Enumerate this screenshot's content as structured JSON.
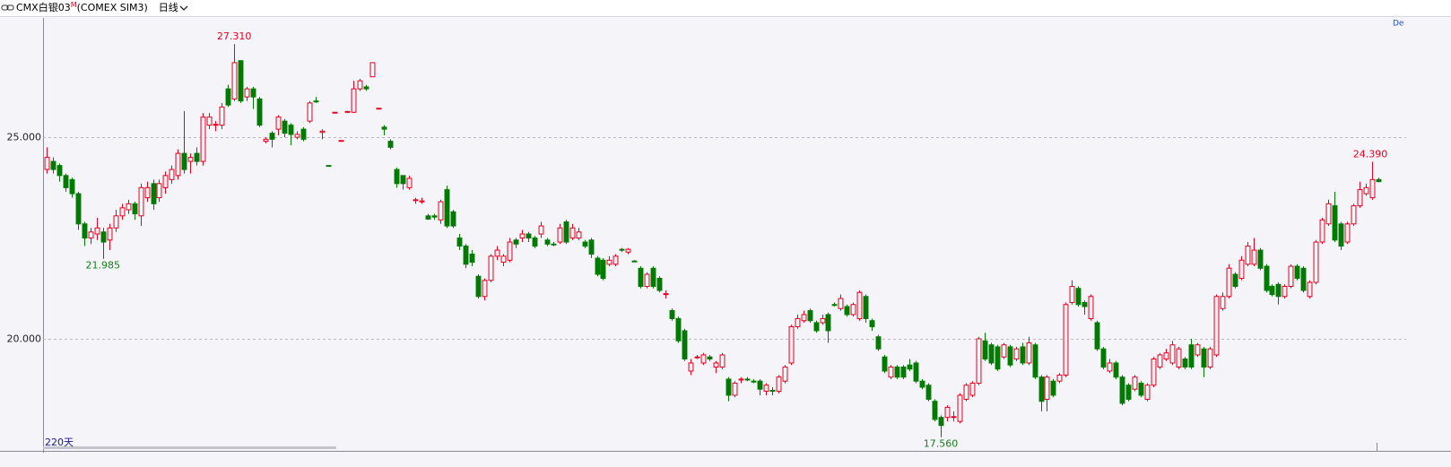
{
  "header": {
    "symbol": "CMX白银03",
    "flag": "M",
    "exchange": "(COMEX SIM3)",
    "period": "日线"
  },
  "chart_data": {
    "type": "candlestick",
    "ylim": [
      17.22,
      27.96
    ],
    "yticks": [
      {
        "value": 20,
        "label": "20.000"
      },
      {
        "value": 25,
        "label": "25.000"
      }
    ],
    "grid": true,
    "up_color": "#e8001c",
    "down_color": "#007a00",
    "range_label": "220天",
    "corner_label": "De",
    "annotations": [
      {
        "value": 27.31,
        "label": "27.310",
        "color": "#e8001c",
        "side": "high"
      },
      {
        "value": 21.985,
        "label": "21.985",
        "color": "#1a7f1a",
        "side": "low"
      },
      {
        "value": 17.56,
        "label": "17.560",
        "color": "#1a7f1a",
        "side": "low"
      },
      {
        "value": 24.39,
        "label": "24.390",
        "color": "#e8001c",
        "side": "high"
      }
    ],
    "open": [
      24.2,
      24.4,
      24.3,
      24.05,
      23.95,
      23.6,
      22.85,
      22.5,
      22.6,
      22.65,
      22.45,
      22.75,
      23.05,
      23.2,
      23.35,
      23.05,
      23.5,
      23.85,
      23.5,
      23.75,
      23.95,
      24.05,
      24.6,
      24.4,
      24.6,
      24.4,
      25.3,
      25.3,
      25.3,
      26.2,
      25.95,
      26.9,
      26.0,
      26.2,
      25.95,
      24.9,
      25.1,
      25.2,
      25.4,
      25.3,
      25.0,
      25.2,
      25.4,
      25.9,
      25.12,
      24.3,
      25.6,
      24.9,
      25.62,
      25.62,
      26.2,
      26.25,
      26.5,
      25.7,
      25.25,
      24.9,
      24.2,
      24.05,
      23.75,
      23.45,
      23.4,
      23.05,
      23.05,
      22.95,
      23.7,
      23.15,
      22.5,
      22.3,
      22.1,
      21.55,
      21.05,
      21.45,
      22.05,
      21.9,
      21.95,
      22.45,
      22.5,
      22.6,
      22.5,
      22.6,
      22.45,
      22.35,
      22.4,
      22.9,
      22.5,
      22.5,
      22.4,
      22.45,
      22.0,
      21.95,
      21.85,
      21.85,
      22.22,
      22.15,
      21.93,
      21.75,
      21.3,
      21.75,
      21.5,
      21.1,
      20.7,
      20.5,
      20.2,
      19.2,
      19.55,
      19.4,
      19.55,
      19.3,
      19.3,
      19.0,
      18.6,
      18.98,
      19.0,
      18.95,
      18.95,
      18.7,
      18.72,
      18.7,
      18.95,
      19.4,
      20.3,
      20.45,
      20.7,
      20.4,
      20.4,
      20.6,
      20.85,
      20.75,
      20.8,
      20.6,
      20.5,
      21.05,
      20.45,
      20.05,
      19.55,
      19.05,
      19.3,
      19.3,
      19.35,
      19.4,
      18.95,
      18.85,
      18.45,
      18.05,
      18.05,
      18.05,
      17.95,
      18.5,
      18.6,
      18.9,
      19.95,
      19.85,
      19.8,
      19.55,
      19.8,
      19.5,
      19.8,
      19.4,
      19.85,
      19.05,
      18.5,
      18.95,
      18.95,
      19.1,
      20.9,
      21.25,
      20.9,
      20.5,
      20.4,
      19.75,
      19.2,
      19.4,
      19.05,
      18.85,
      18.75,
      18.9,
      18.5,
      18.85,
      19.3,
      19.5,
      19.4,
      19.3,
      19.5,
      19.85,
      19.6,
      19.75,
      19.3,
      19.6,
      20.75,
      21.05,
      21.6,
      21.5,
      21.85,
      21.85,
      22.2,
      21.8,
      21.3,
      21.35,
      21.05,
      21.3,
      21.8,
      21.75,
      21.05,
      21.4,
      22.4,
      22.85,
      23.3,
      22.85,
      22.4,
      22.85,
      23.3,
      23.6,
      23.5,
      23.95
    ],
    "high": [
      24.75,
      24.5,
      24.35,
      24.1,
      24.0,
      23.65,
      22.9,
      22.75,
      23.0,
      22.75,
      22.85,
      23.2,
      23.35,
      23.45,
      23.4,
      23.85,
      23.9,
      23.95,
      23.95,
      24.15,
      24.3,
      24.7,
      25.65,
      24.6,
      24.75,
      25.6,
      25.6,
      25.4,
      25.85,
      26.3,
      27.31,
      26.9,
      26.25,
      26.25,
      26.0,
      25.0,
      25.15,
      25.55,
      25.45,
      25.35,
      25.15,
      25.25,
      25.9,
      26.0,
      25.2,
      24.3,
      25.62,
      24.92,
      25.65,
      26.4,
      26.45,
      26.3,
      26.85,
      25.72,
      25.3,
      24.95,
      24.25,
      24.05,
      24.05,
      23.5,
      23.5,
      23.1,
      23.1,
      23.45,
      23.8,
      23.2,
      22.6,
      22.35,
      22.2,
      21.6,
      21.5,
      22.1,
      22.3,
      22.1,
      22.5,
      22.5,
      22.7,
      22.65,
      22.55,
      22.9,
      22.5,
      22.4,
      22.85,
      22.95,
      22.85,
      22.75,
      22.45,
      22.5,
      22.05,
      22.0,
      22.05,
      22.1,
      22.25,
      22.25,
      21.95,
      21.8,
      21.65,
      21.8,
      21.55,
      21.2,
      20.75,
      20.55,
      20.25,
      19.5,
      19.6,
      19.65,
      19.6,
      19.45,
      19.65,
      19.05,
      18.95,
      19.05,
      19.05,
      19.0,
      19.0,
      18.9,
      18.8,
      19.1,
      19.35,
      20.35,
      20.6,
      20.7,
      20.75,
      20.45,
      20.6,
      20.65,
      20.9,
      21.1,
      20.85,
      20.9,
      21.2,
      21.1,
      20.5,
      20.1,
      19.6,
      19.35,
      19.35,
      19.35,
      19.5,
      19.45,
      19.0,
      18.9,
      18.5,
      18.1,
      18.35,
      18.2,
      18.65,
      18.9,
      18.95,
      20.05,
      20.15,
      19.9,
      19.85,
      19.9,
      19.85,
      19.8,
      19.9,
      20.05,
      19.9,
      19.1,
      19.1,
      19.0,
      19.15,
      20.9,
      21.45,
      21.3,
      20.95,
      21.1,
      20.45,
      19.8,
      19.5,
      19.45,
      19.1,
      18.9,
      19.1,
      18.95,
      18.9,
      19.55,
      19.65,
      19.75,
      19.95,
      19.8,
      19.55,
      20.0,
      19.9,
      19.8,
      19.8,
      21.1,
      21.15,
      21.85,
      21.65,
      22.05,
      22.4,
      22.5,
      22.25,
      21.85,
      21.35,
      21.4,
      21.35,
      21.85,
      21.85,
      21.8,
      21.45,
      22.45,
      23.0,
      23.45,
      23.65,
      22.9,
      22.9,
      23.35,
      23.9,
      23.85,
      24.39,
      24.0
    ],
    "low": [
      24.1,
      24.1,
      23.9,
      23.65,
      23.5,
      22.7,
      22.3,
      22.35,
      22.45,
      21.985,
      22.2,
      22.65,
      22.95,
      23.1,
      22.95,
      22.8,
      23.4,
      23.2,
      23.4,
      23.6,
      23.85,
      23.95,
      24.1,
      24.1,
      24.3,
      24.3,
      25.2,
      25.15,
      25.2,
      25.75,
      25.9,
      25.85,
      25.9,
      25.7,
      25.25,
      24.85,
      24.75,
      25.05,
      25.0,
      24.8,
      24.95,
      24.9,
      25.35,
      25.85,
      24.95,
      24.28,
      25.6,
      24.9,
      25.6,
      25.6,
      26.15,
      26.15,
      26.5,
      25.7,
      25.05,
      24.7,
      23.75,
      23.7,
      23.7,
      23.35,
      23.35,
      22.95,
      22.95,
      22.85,
      22.75,
      22.75,
      22.2,
      21.75,
      21.8,
      21.0,
      20.95,
      21.4,
      21.95,
      21.8,
      21.9,
      22.25,
      22.4,
      22.4,
      22.25,
      22.5,
      22.3,
      22.3,
      22.35,
      22.35,
      22.45,
      22.45,
      22.25,
      22.0,
      21.55,
      21.45,
      21.8,
      21.8,
      22.15,
      22.1,
      21.9,
      21.25,
      21.25,
      21.25,
      21.15,
      21.0,
      20.45,
      19.9,
      19.45,
      19.1,
      19.5,
      19.35,
      19.45,
      19.15,
      19.25,
      18.45,
      18.55,
      18.9,
      18.95,
      18.9,
      18.6,
      18.6,
      18.6,
      18.65,
      18.9,
      19.35,
      20.25,
      20.4,
      20.4,
      20.15,
      20.35,
      19.9,
      20.8,
      20.7,
      20.55,
      20.55,
      20.45,
      20.4,
      20.2,
      19.7,
      19.15,
      19.0,
      19.0,
      19.0,
      19.2,
      18.9,
      18.75,
      18.45,
      17.95,
      17.56,
      17.95,
      17.95,
      17.9,
      18.45,
      18.55,
      18.85,
      19.45,
      19.35,
      19.2,
      19.5,
      19.3,
      19.45,
      19.35,
      19.35,
      19.0,
      18.2,
      18.2,
      18.55,
      18.9,
      19.05,
      20.85,
      20.8,
      20.6,
      20.45,
      19.7,
      19.25,
      19.15,
      19.0,
      18.35,
      18.45,
      18.7,
      18.55,
      18.45,
      18.8,
      19.25,
      19.45,
      19.35,
      19.25,
      19.25,
      19.25,
      19.55,
      19.05,
      19.25,
      19.55,
      20.7,
      21.0,
      21.25,
      21.45,
      21.8,
      21.8,
      21.7,
      21.15,
      21.05,
      20.85,
      21.0,
      21.25,
      21.45,
      21.15,
      21.0,
      21.35,
      22.35,
      22.8,
      22.4,
      22.2,
      22.35,
      22.8,
      23.25,
      23.55,
      23.45,
      23.88
    ],
    "close": [
      24.5,
      24.2,
      24.05,
      23.75,
      23.6,
      22.85,
      22.5,
      22.65,
      22.75,
      22.4,
      22.75,
      23.05,
      23.25,
      23.35,
      23.1,
      23.75,
      23.75,
      23.35,
      23.85,
      24.05,
      24.2,
      24.6,
      24.2,
      24.5,
      24.4,
      25.5,
      25.5,
      25.32,
      25.75,
      25.8,
      26.85,
      25.9,
      26.2,
      26.0,
      25.3,
      24.95,
      24.95,
      25.5,
      25.1,
      25.07,
      25.07,
      24.95,
      25.85,
      25.88,
      25.15,
      24.28,
      25.62,
      24.92,
      25.64,
      26.2,
      26.4,
      26.2,
      26.85,
      25.72,
      25.2,
      24.75,
      23.85,
      23.85,
      23.98,
      23.45,
      23.42,
      22.97,
      23.02,
      23.4,
      22.8,
      22.8,
      22.3,
      21.85,
      21.9,
      21.05,
      21.45,
      22.05,
      22.2,
      22.05,
      22.4,
      22.35,
      22.6,
      22.5,
      22.3,
      22.8,
      22.35,
      22.33,
      22.75,
      22.4,
      22.75,
      22.65,
      22.3,
      22.1,
      21.6,
      21.5,
      21.95,
      22.05,
      22.2,
      22.22,
      21.92,
      21.3,
      21.6,
      21.3,
      21.2,
      21.12,
      20.5,
      19.95,
      19.5,
      19.4,
      19.55,
      19.6,
      19.5,
      19.4,
      19.6,
      18.6,
      18.9,
      19.0,
      18.98,
      18.94,
      18.75,
      18.85,
      18.7,
      19.05,
      19.3,
      20.3,
      20.5,
      20.6,
      20.45,
      20.2,
      20.5,
      20.2,
      20.83,
      21.0,
      20.6,
      20.85,
      21.15,
      20.5,
      20.3,
      19.75,
      19.2,
      19.3,
      19.05,
      19.05,
      19.25,
      18.95,
      18.8,
      18.5,
      18.0,
      17.85,
      18.3,
      18.07,
      18.6,
      18.85,
      18.9,
      20.0,
      19.5,
      19.4,
      19.25,
      19.85,
      19.35,
      19.75,
      19.4,
      19.9,
      19.05,
      18.45,
      19.05,
      18.6,
      19.1,
      20.85,
      21.3,
      20.85,
      20.8,
      21.05,
      19.75,
      19.3,
      19.4,
      19.05,
      18.4,
      18.5,
      19.05,
      18.6,
      18.85,
      19.5,
      19.6,
      19.65,
      19.85,
      19.75,
      19.3,
      19.3,
      19.85,
      19.3,
      19.75,
      21.05,
      21.05,
      21.75,
      21.3,
      21.95,
      22.3,
      22.2,
      21.75,
      21.2,
      21.1,
      21.05,
      21.3,
      21.8,
      21.5,
      21.2,
      21.4,
      22.4,
      22.95,
      23.35,
      22.45,
      22.3,
      22.85,
      23.3,
      23.7,
      23.75,
      23.95,
      23.9
    ]
  }
}
